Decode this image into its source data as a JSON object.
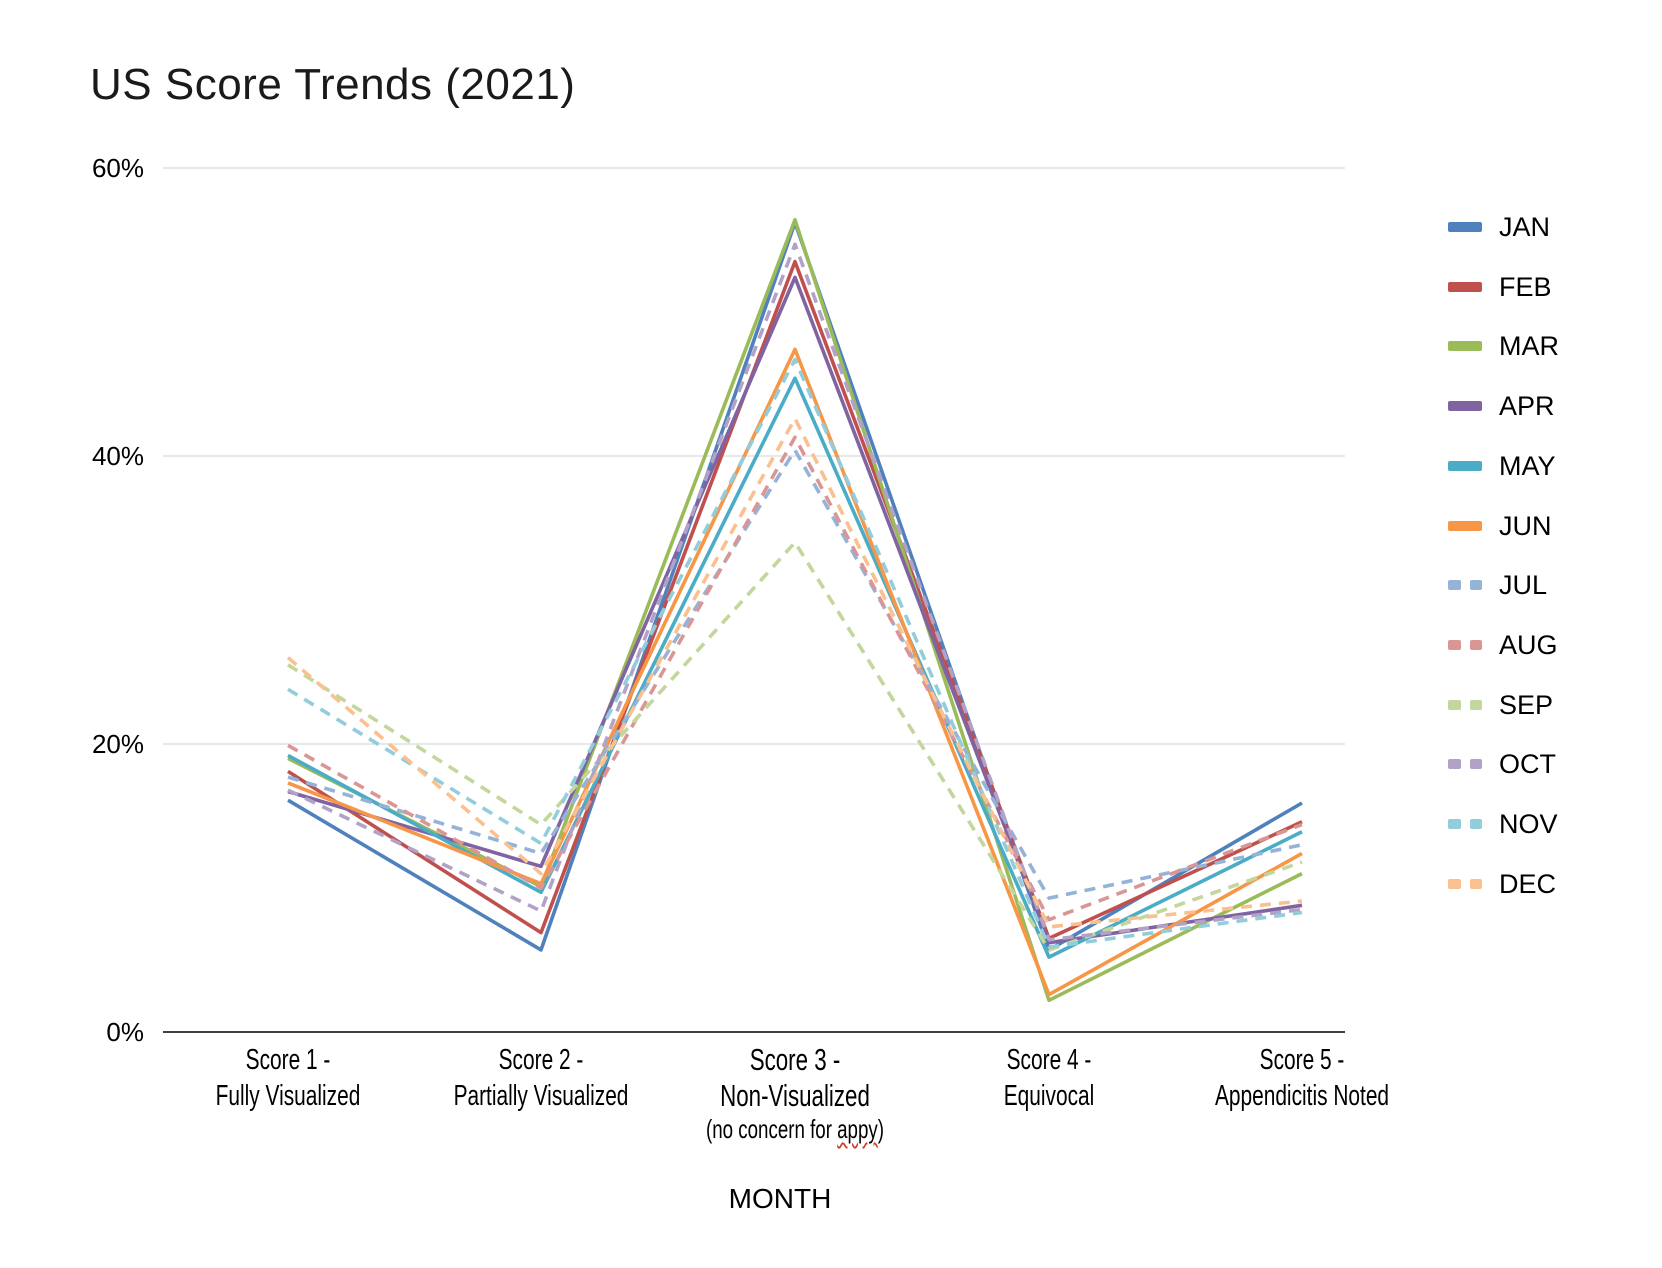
{
  "chart_data": {
    "type": "line",
    "title": "US Score Trends (2021)",
    "xlabel": "MONTH",
    "ylabel": "",
    "ylim": [
      0,
      60
    ],
    "grid": true,
    "legend_position": "right",
    "yticks": [
      {
        "value": 0,
        "label": "0%"
      },
      {
        "value": 20,
        "label": "20%"
      },
      {
        "value": 40,
        "label": "40%"
      },
      {
        "value": 60,
        "label": "60%"
      }
    ],
    "categories": [
      {
        "label_lines": [
          "Score 1 -",
          "Fully Visualized"
        ]
      },
      {
        "label_lines": [
          "Score 2 -",
          "Partially Visualized"
        ]
      },
      {
        "label_lines": [
          "Score 3 -",
          "Non-Visualized"
        ],
        "note_line": {
          "prefix": "(no concern for ",
          "misspelled_word": "appy",
          "suffix": ")"
        }
      },
      {
        "label_lines": [
          "Score 4 -",
          "Equivocal"
        ]
      },
      {
        "label_lines": [
          "Score 5 -",
          "Appendicitis Noted"
        ]
      }
    ],
    "series": [
      {
        "name": "JAN",
        "line_style": "solid",
        "color": "#4F81BD",
        "values": [
          16.1,
          5.7,
          56.2,
          5.7,
          15.9
        ]
      },
      {
        "name": "FEB",
        "line_style": "solid",
        "color": "#C0504D",
        "values": [
          18.1,
          6.9,
          53.5,
          6.5,
          14.6
        ]
      },
      {
        "name": "MAR",
        "line_style": "solid",
        "color": "#9BBB59",
        "values": [
          19.0,
          10.1,
          56.4,
          2.2,
          11.0
        ]
      },
      {
        "name": "APR",
        "line_style": "solid",
        "color": "#8064A2",
        "values": [
          16.7,
          11.5,
          52.4,
          6.2,
          8.8
        ]
      },
      {
        "name": "MAY",
        "line_style": "solid",
        "color": "#4BACC6",
        "values": [
          19.2,
          9.7,
          45.4,
          5.2,
          13.9
        ]
      },
      {
        "name": "JUN",
        "line_style": "solid",
        "color": "#F79646",
        "values": [
          17.3,
          10.3,
          47.4,
          2.6,
          12.4
        ]
      },
      {
        "name": "JUL",
        "line_style": "dashed",
        "color": "#95B3D7",
        "values": [
          17.7,
          12.4,
          40.4,
          9.3,
          13.0
        ]
      },
      {
        "name": "AUG",
        "line_style": "dashed",
        "color": "#D99694",
        "values": [
          19.9,
          10.0,
          41.3,
          7.8,
          14.4
        ]
      },
      {
        "name": "SEP",
        "line_style": "dashed",
        "color": "#C3D69B",
        "values": [
          25.5,
          14.4,
          34.0,
          5.7,
          11.8
        ]
      },
      {
        "name": "OCT",
        "line_style": "dashed",
        "color": "#B2A2C7",
        "values": [
          16.8,
          8.4,
          54.7,
          6.4,
          8.5
        ]
      },
      {
        "name": "NOV",
        "line_style": "dashed",
        "color": "#92CDDC",
        "values": [
          23.8,
          13.1,
          46.7,
          5.9,
          8.3
        ]
      },
      {
        "name": "DEC",
        "line_style": "dashed",
        "color": "#FAC08F",
        "values": [
          26.0,
          11.0,
          42.6,
          7.3,
          9.1
        ]
      }
    ]
  },
  "colors": {
    "gridline": "#d9d9d9",
    "axis_line": "#404040",
    "title_text": "#1a1a1a",
    "label_text": "#000000",
    "spellcheck_underline": "#d43a26"
  }
}
